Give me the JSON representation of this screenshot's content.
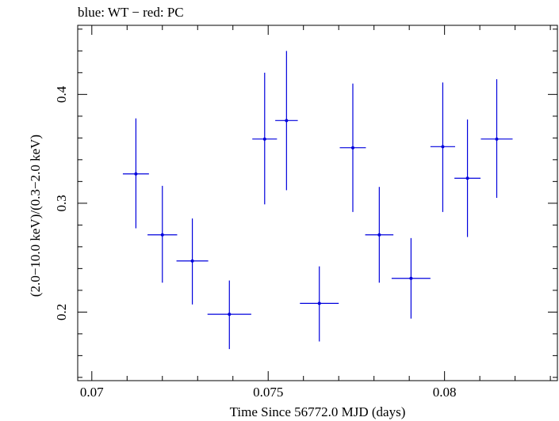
{
  "chart_data": {
    "type": "scatter",
    "title": "blue: WT − red: PC",
    "xlabel": "Time Since 56772.0 MJD (days)",
    "ylabel": "(2.0−10.0 keV)/(0.3−2.0 keV)",
    "xlim": [
      0.0696,
      0.0832
    ],
    "ylim": [
      0.137,
      0.4635
    ],
    "x_ticks": [
      "0.07",
      "0.075",
      "0.08"
    ],
    "x_tick_values": [
      0.07,
      0.075,
      0.08
    ],
    "y_ticks": [
      "0.2",
      "0.3",
      "0.4"
    ],
    "y_tick_values": [
      0.2,
      0.3,
      0.4
    ],
    "grid": false,
    "series": [
      {
        "color": "#0000dd",
        "points": [
          {
            "x": 0.07125,
            "xerr": 0.00037,
            "y": 0.327,
            "ylo": 0.277,
            "yhi": 0.378
          },
          {
            "x": 0.072,
            "xerr": 0.00042,
            "y": 0.271,
            "ylo": 0.227,
            "yhi": 0.316
          },
          {
            "x": 0.07285,
            "xerr": 0.00045,
            "y": 0.247,
            "ylo": 0.207,
            "yhi": 0.286
          },
          {
            "x": 0.0739,
            "xerr": 0.00062,
            "y": 0.198,
            "ylo": 0.166,
            "yhi": 0.229
          },
          {
            "x": 0.0749,
            "xerr": 0.00035,
            "y": 0.359,
            "ylo": 0.299,
            "yhi": 0.42
          },
          {
            "x": 0.07552,
            "xerr": 0.00032,
            "y": 0.376,
            "ylo": 0.312,
            "yhi": 0.44
          },
          {
            "x": 0.07645,
            "xerr": 0.00055,
            "y": 0.208,
            "ylo": 0.173,
            "yhi": 0.242
          },
          {
            "x": 0.0774,
            "xerr": 0.00037,
            "y": 0.351,
            "ylo": 0.292,
            "yhi": 0.41
          },
          {
            "x": 0.07815,
            "xerr": 0.0004,
            "y": 0.271,
            "ylo": 0.227,
            "yhi": 0.315
          },
          {
            "x": 0.07905,
            "xerr": 0.00055,
            "y": 0.231,
            "ylo": 0.194,
            "yhi": 0.268
          },
          {
            "x": 0.07995,
            "xerr": 0.00035,
            "y": 0.352,
            "ylo": 0.292,
            "yhi": 0.411
          },
          {
            "x": 0.08065,
            "xerr": 0.00037,
            "y": 0.323,
            "ylo": 0.269,
            "yhi": 0.377
          },
          {
            "x": 0.08148,
            "xerr": 0.00045,
            "y": 0.359,
            "ylo": 0.305,
            "yhi": 0.414
          }
        ]
      }
    ]
  }
}
